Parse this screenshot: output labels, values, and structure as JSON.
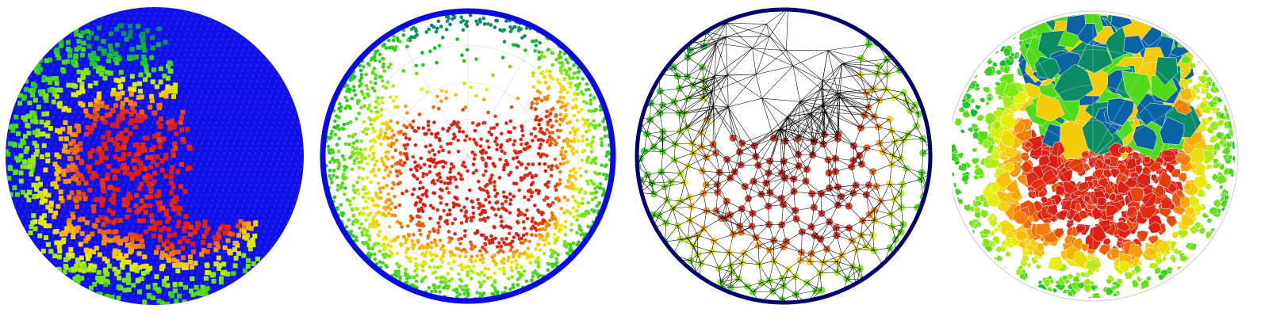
{
  "figure": {
    "panels": [
      {
        "id": "panel-1",
        "kind": "raw-point-cloud",
        "background_color": "#1010e8",
        "marker_shape": "square-block",
        "grid": "none"
      },
      {
        "id": "panel-2",
        "kind": "polar-projected-scatter",
        "rim_color": "#0a0ae6",
        "marker_shape": "dot",
        "grid": "polar-rings-and-spokes"
      },
      {
        "id": "panel-3",
        "kind": "delaunay-triangulation",
        "rim_color": "#00006e",
        "edge_color": "#000000",
        "grid": "none"
      },
      {
        "id": "panel-4",
        "kind": "voronoi-tessellation",
        "cell_border_color": "#ffffff",
        "grid": "polar-rings-and-spokes"
      }
    ],
    "colormap": [
      "#0a1ee6",
      "#0a5ab4",
      "#0a8c64",
      "#14c81e",
      "#78e614",
      "#e6f00a",
      "#ffb400",
      "#f0640a",
      "#dc1e14"
    ]
  }
}
